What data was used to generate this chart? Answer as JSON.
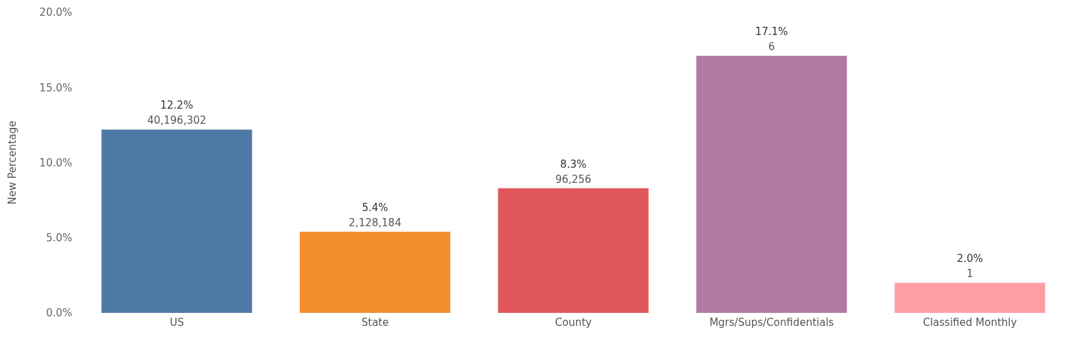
{
  "chart_data": {
    "type": "bar",
    "ylabel": "New Percentage",
    "categories": [
      "US",
      "State",
      "County",
      "Mgrs/Sups/Confidentials",
      "Classified Monthly"
    ],
    "values": [
      12.2,
      5.4,
      8.3,
      17.1,
      2.0
    ],
    "colors": [
      "#4e79a7",
      "#f28e2b",
      "#e15759",
      "#b07aa1",
      "#ff9da7"
    ],
    "value_labels": [
      "12.2%\n40,196,302",
      "5.4%\n2,128,184",
      "8.3%\n96,256",
      "17.1%\n6",
      "2.0%\n1"
    ],
    "ylim": [
      0,
      20
    ],
    "yticks": [
      {
        "value": 0,
        "label": "0.0%"
      },
      {
        "value": 5,
        "label": "5.0%"
      },
      {
        "value": 10,
        "label": "10.0%"
      },
      {
        "value": 15,
        "label": "15.0%"
      },
      {
        "value": 20,
        "label": "20.0%"
      }
    ]
  }
}
